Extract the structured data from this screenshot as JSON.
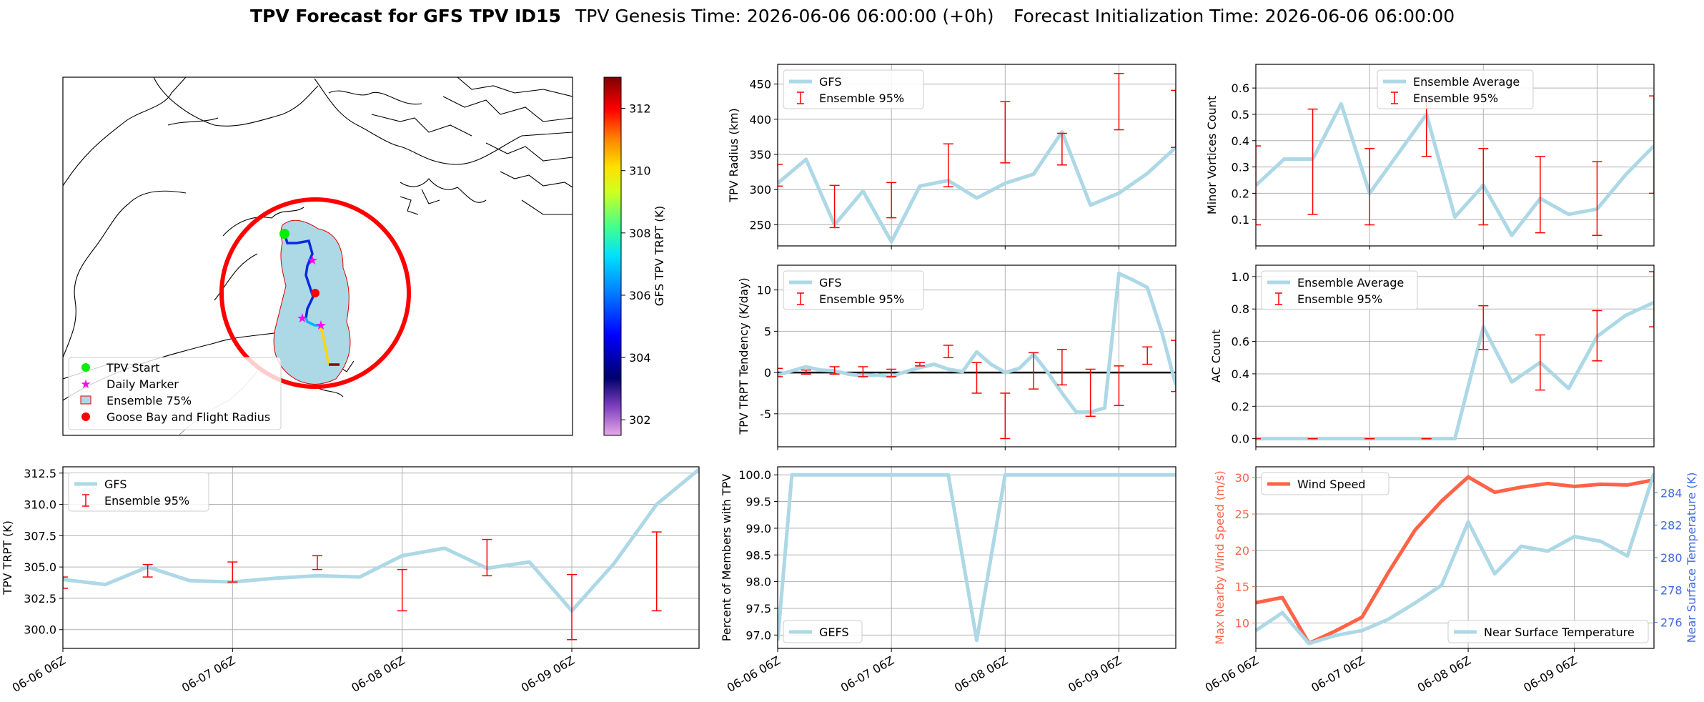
{
  "suptitle": {
    "bold": "TPV Forecast for GFS TPV ID15",
    "genesis": "TPV Genesis Time: 2026-06-06 06:00:00 (+0h)",
    "init": "Forecast Initialization Time: 2026-06-06 06:00:00"
  },
  "time_ticks": [
    "06-06 06Z",
    "06-07 06Z",
    "06-08 06Z",
    "06-09 06Z"
  ],
  "colors": {
    "gfs_line": "#add8e6",
    "ensemble_err": "#ff0000",
    "wind": "#ff6347",
    "temp_axis": "#4169e1",
    "zero_line": "#000000",
    "grid": "#b0b0b0"
  },
  "map": {
    "legend": [
      "TPV Start",
      "Daily Marker",
      "Ensemble 75%",
      "Goose Bay and Flight Radius"
    ],
    "colorbar": {
      "label": "GFS TPV TRPT (K)",
      "ticks": [
        302,
        304,
        306,
        308,
        310,
        312
      ],
      "range": [
        301.5,
        313
      ]
    }
  },
  "chart_data": [
    {
      "id": "radius",
      "type": "line",
      "ylabel": "TPV Radius (km)",
      "ylim": [
        220,
        478
      ],
      "yticks": [
        250,
        300,
        350,
        400,
        450
      ],
      "xlim": [
        0,
        3.5
      ],
      "legend": [
        "GFS",
        "Ensemble 95%"
      ],
      "legend_loc": "upper left",
      "grid": true,
      "series": [
        {
          "name": "GFS",
          "x": [
            0,
            0.25,
            0.5,
            0.75,
            1.0,
            1.25,
            1.5,
            1.75,
            2.0,
            2.25,
            2.5,
            2.75,
            3.0,
            3.25,
            3.5
          ],
          "values": [
            309,
            343,
            250,
            298,
            226,
            305,
            313,
            288,
            309,
            322,
            382,
            278,
            295,
            323,
            360
          ]
        },
        {
          "name": "Ensemble 95%",
          "type": "errorbar",
          "x": [
            0,
            0.5,
            1.0,
            1.5,
            2.0,
            2.5,
            3.0,
            3.5
          ],
          "low": [
            305,
            246,
            260,
            304,
            338,
            335,
            385,
            360
          ],
          "high": [
            336,
            306,
            310,
            365,
            425,
            380,
            465,
            441
          ]
        }
      ]
    },
    {
      "id": "minor",
      "type": "line",
      "ylabel": "Minor Vortices Count",
      "ylim": [
        0,
        0.69
      ],
      "yticks": [
        0.1,
        0.2,
        0.3,
        0.4,
        0.5,
        0.6
      ],
      "xlim": [
        0,
        3.5
      ],
      "legend": [
        "Ensemble Average",
        "Ensemble 95%"
      ],
      "legend_loc": "upper center",
      "grid": true,
      "series": [
        {
          "name": "Ensemble Average",
          "x": [
            0,
            0.25,
            0.5,
            0.75,
            1.0,
            1.25,
            1.5,
            1.75,
            2.0,
            2.25,
            2.5,
            2.75,
            3.0,
            3.25,
            3.5
          ],
          "values": [
            0.23,
            0.33,
            0.33,
            0.54,
            0.2,
            0.35,
            0.5,
            0.11,
            0.23,
            0.04,
            0.18,
            0.12,
            0.14,
            0.27,
            0.38
          ]
        },
        {
          "name": "Ensemble 95%",
          "type": "errorbar",
          "x": [
            0,
            0.5,
            1.0,
            1.5,
            2.0,
            2.5,
            3.0,
            3.5
          ],
          "low": [
            0.08,
            0.12,
            0.08,
            0.34,
            0.08,
            0.05,
            0.04,
            0.2
          ],
          "high": [
            0.38,
            0.52,
            0.37,
            0.55,
            0.37,
            0.34,
            0.32,
            0.57
          ]
        }
      ]
    },
    {
      "id": "tendency",
      "type": "line",
      "ylabel": "TPV TRPT Tendency (K/day)",
      "ylim": [
        -9,
        13
      ],
      "yticks": [
        -5,
        0,
        5,
        10
      ],
      "xlim": [
        0,
        3.5
      ],
      "legend": [
        "GFS",
        "Ensemble 95%"
      ],
      "legend_loc": "upper left",
      "grid": true,
      "zero_line": true,
      "series": [
        {
          "name": "GFS",
          "x": [
            0,
            0.125,
            0.25,
            0.375,
            0.5,
            0.625,
            0.75,
            0.875,
            1.0,
            1.125,
            1.25,
            1.375,
            1.5,
            1.625,
            1.75,
            1.875,
            2.0,
            2.125,
            2.25,
            2.375,
            2.5,
            2.625,
            2.75,
            2.875,
            3.0,
            3.125,
            3.25,
            3.375,
            3.5
          ],
          "values": [
            -0.3,
            0.2,
            0.7,
            0.3,
            0.2,
            -0.2,
            -0.4,
            -0.3,
            -0.5,
            0.1,
            0.6,
            1.0,
            0.4,
            0.1,
            2.5,
            1.0,
            0.0,
            0.5,
            2.2,
            0.0,
            -2.5,
            -4.8,
            -4.8,
            -4.3,
            12.0,
            11.2,
            10.3,
            5.0,
            -1.5
          ]
        },
        {
          "name": "Ensemble 95%",
          "type": "errorbar",
          "x": [
            0,
            0.125,
            0.25,
            0.375,
            0.5,
            0.625,
            0.75,
            0.875,
            1.0,
            1.125,
            1.25,
            1.375,
            1.5,
            1.625,
            1.75,
            1.875,
            2.0,
            2.125,
            2.25,
            2.375,
            2.5,
            2.625,
            2.75,
            2.875,
            3.0,
            3.125,
            3.25,
            3.375,
            3.5
          ],
          "low": [
            -0.5,
            null,
            -0.2,
            null,
            -0.2,
            null,
            -0.5,
            null,
            -0.5,
            null,
            0.8,
            null,
            1.8,
            null,
            -2.5,
            null,
            -8.0,
            null,
            -2.0,
            null,
            -1.5,
            null,
            -5.3,
            null,
            -4.0,
            null,
            1.0,
            null,
            -2.3
          ],
          "high": [
            0.5,
            null,
            0.3,
            null,
            0.7,
            null,
            0.7,
            null,
            0.4,
            null,
            1.2,
            null,
            3.3,
            null,
            1.2,
            null,
            -2.5,
            null,
            2.4,
            null,
            2.8,
            null,
            0.4,
            null,
            0.8,
            null,
            3.1,
            null,
            3.9
          ]
        }
      ]
    },
    {
      "id": "ac",
      "type": "line",
      "ylabel": "AC Count",
      "ylim": [
        -0.05,
        1.07
      ],
      "yticks": [
        0.0,
        0.2,
        0.4,
        0.6,
        0.8,
        1.0
      ],
      "xlim": [
        0,
        3.5
      ],
      "legend": [
        "Ensemble Average",
        "Ensemble 95%"
      ],
      "legend_loc": "upper left",
      "grid": true,
      "series": [
        {
          "name": "Ensemble Average",
          "x": [
            0,
            0.25,
            0.5,
            0.75,
            1.0,
            1.25,
            1.5,
            1.75,
            2.0,
            2.25,
            2.5,
            2.75,
            3.0,
            3.25,
            3.5
          ],
          "values": [
            0,
            0,
            0,
            0,
            0,
            0,
            0,
            0,
            0.69,
            0.35,
            0.47,
            0.31,
            0.63,
            0.76,
            0.84
          ]
        },
        {
          "name": "Ensemble 95%",
          "type": "errorbar",
          "x": [
            0,
            0.5,
            1.0,
            1.5,
            2.0,
            2.5,
            3.0,
            3.5
          ],
          "low": [
            0,
            0,
            0,
            0,
            0.55,
            0.3,
            0.48,
            0.69
          ],
          "high": [
            0,
            0,
            0,
            0,
            0.82,
            0.64,
            0.79,
            1.03
          ]
        }
      ]
    },
    {
      "id": "trpt",
      "type": "line",
      "ylabel": "TPV TRPT (K)",
      "ylim": [
        298.5,
        313
      ],
      "yticks": [
        300.0,
        302.5,
        305.0,
        307.5,
        310.0,
        312.5
      ],
      "xlim": [
        0,
        3.75
      ],
      "legend": [
        "GFS",
        "Ensemble 95%"
      ],
      "legend_loc": "upper left",
      "grid": true,
      "series": [
        {
          "name": "GFS",
          "x": [
            0,
            0.25,
            0.5,
            0.75,
            1.0,
            1.25,
            1.5,
            1.75,
            2.0,
            2.25,
            2.5,
            2.75,
            3.0,
            3.25,
            3.5,
            3.75
          ],
          "values": [
            304.0,
            303.6,
            305.0,
            303.9,
            303.8,
            304.1,
            304.3,
            304.2,
            305.9,
            306.5,
            304.9,
            305.4,
            301.5,
            305.3,
            310.0,
            312.8
          ]
        },
        {
          "name": "Ensemble 95%",
          "type": "errorbar",
          "x": [
            0,
            0.5,
            1.0,
            1.5,
            2.0,
            2.5,
            3.0,
            3.5
          ],
          "low": [
            303.3,
            304.2,
            303.8,
            304.8,
            301.5,
            304.3,
            299.2,
            301.5
          ],
          "high": [
            304.2,
            305.2,
            305.4,
            305.9,
            304.8,
            307.2,
            304.4,
            307.8
          ]
        }
      ]
    },
    {
      "id": "percent",
      "type": "line",
      "ylabel": "Percent of Members with TPV",
      "ylim": [
        96.75,
        100.15
      ],
      "yticks": [
        97.0,
        97.5,
        98.0,
        98.5,
        99.0,
        99.5,
        100.0
      ],
      "xlim": [
        0,
        3.5
      ],
      "legend": [
        "GEFS"
      ],
      "legend_loc": "lower left",
      "grid": true,
      "series": [
        {
          "name": "GEFS",
          "x": [
            0,
            0.125,
            1.5,
            1.75,
            2.0,
            3.5
          ],
          "values": [
            96.9,
            100.0,
            100.0,
            96.9,
            100.0,
            100.0
          ]
        }
      ]
    },
    {
      "id": "wind",
      "type": "line",
      "ylabel": "Max Nearby Wind Speed (m/s)",
      "y2label": "Near Surface Temperature (K)",
      "ylim": [
        6.5,
        31.5
      ],
      "yticks": [
        10,
        15,
        20,
        25,
        30
      ],
      "y2lim": [
        274.4,
        285.6
      ],
      "y2ticks": [
        276,
        278,
        280,
        282,
        284
      ],
      "xlim": [
        0,
        3.75
      ],
      "legend": [
        "Wind Speed"
      ],
      "legend2": [
        "Near Surface Temperature"
      ],
      "grid": true,
      "series": [
        {
          "name": "Wind Speed",
          "axis": "left",
          "x": [
            0,
            0.25,
            0.5,
            0.75,
            1.0,
            1.25,
            1.5,
            1.75,
            2.0,
            2.25,
            2.5,
            2.75,
            3.0,
            3.25,
            3.5,
            3.75
          ],
          "values": [
            12.8,
            13.5,
            7.2,
            8.9,
            10.8,
            17.0,
            22.8,
            26.8,
            30.1,
            28.0,
            28.7,
            29.2,
            28.8,
            29.1,
            29.0,
            29.7
          ]
        },
        {
          "name": "Near Surface Temperature",
          "axis": "right",
          "x": [
            0,
            0.25,
            0.5,
            0.75,
            1.0,
            1.25,
            1.5,
            1.75,
            2.0,
            2.25,
            2.5,
            2.75,
            3.0,
            3.25,
            3.5,
            3.75
          ],
          "values": [
            275.5,
            276.6,
            274.7,
            275.2,
            275.5,
            276.2,
            277.2,
            278.3,
            282.2,
            279.0,
            280.7,
            280.4,
            281.3,
            281.0,
            280.1,
            285.2
          ]
        }
      ]
    }
  ]
}
